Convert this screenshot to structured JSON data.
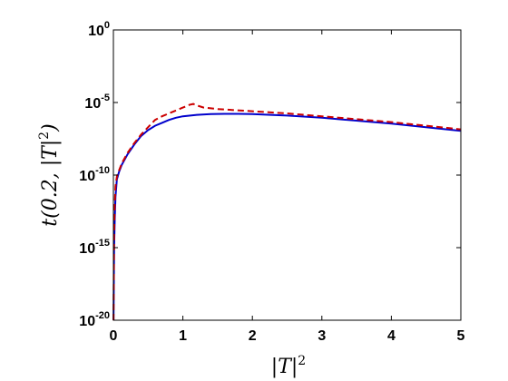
{
  "chart_data": {
    "type": "line",
    "title": "",
    "xlabel": "|T|",
    "xlabel_sup": "2",
    "ylabel": "t(0.2, |T|",
    "ylabel_sup": "2",
    "ylabel_close": ")",
    "y_scale": "log",
    "xlim": [
      0,
      5
    ],
    "ylim_exponent": [
      -20,
      0
    ],
    "x_ticks": [
      "0",
      "1",
      "2",
      "3",
      "4",
      "5"
    ],
    "y_tick_base": "10",
    "y_tick_exponents": [
      "0",
      "-5",
      "-10",
      "-15",
      "-20"
    ],
    "grid": false,
    "legend": "none",
    "series": [
      {
        "style": "solid",
        "color": "#0000cc",
        "x": [
          0.002,
          0.01,
          0.02,
          0.03,
          0.05,
          0.08,
          0.12,
          0.2,
          0.3,
          0.4,
          0.5,
          0.6,
          0.7,
          0.8,
          0.9,
          1.0,
          1.2,
          1.4,
          1.6,
          1.8,
          2.0,
          2.5,
          3.0,
          3.5,
          4.0,
          4.5,
          5.0
        ],
        "log10_y": [
          -20,
          -15,
          -13,
          -11.5,
          -10.3,
          -9.8,
          -9.3,
          -8.6,
          -7.9,
          -7.3,
          -6.9,
          -6.6,
          -6.4,
          -6.2,
          -6.05,
          -5.95,
          -5.85,
          -5.8,
          -5.78,
          -5.78,
          -5.8,
          -5.9,
          -6.05,
          -6.25,
          -6.45,
          -6.7,
          -6.95
        ]
      },
      {
        "style": "dashed",
        "color": "#cc0000",
        "x": [
          0.002,
          0.01,
          0.02,
          0.03,
          0.05,
          0.08,
          0.12,
          0.2,
          0.3,
          0.4,
          0.5,
          0.6,
          0.7,
          0.8,
          0.9,
          1.0,
          1.05,
          1.1,
          1.15,
          1.2,
          1.3,
          1.5,
          2.0,
          2.5,
          3.0,
          3.5,
          4.0,
          4.5,
          5.0
        ],
        "log10_y": [
          -20,
          -14,
          -12,
          -10.8,
          -10.1,
          -9.7,
          -9.2,
          -8.5,
          -7.8,
          -7.2,
          -6.7,
          -6.2,
          -5.95,
          -5.75,
          -5.55,
          -5.35,
          -5.25,
          -5.15,
          -5.1,
          -5.2,
          -5.35,
          -5.45,
          -5.6,
          -5.75,
          -5.95,
          -6.15,
          -6.35,
          -6.6,
          -6.85
        ]
      }
    ]
  }
}
